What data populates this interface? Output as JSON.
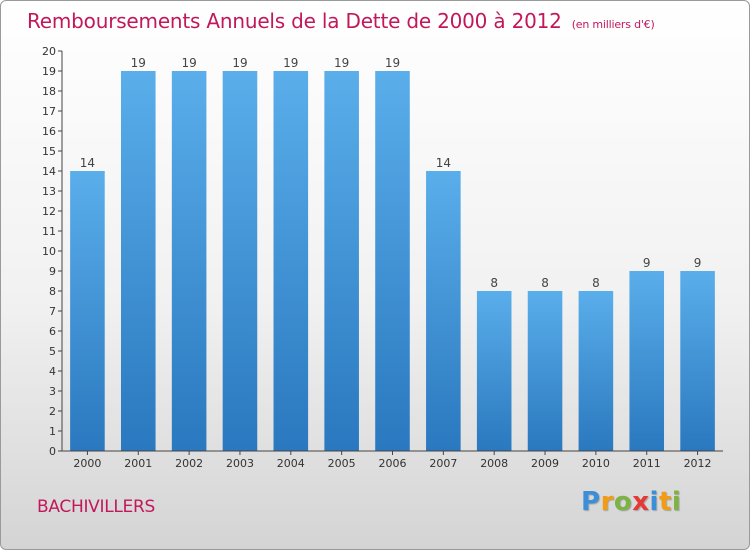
{
  "header": {
    "title": "Remboursements Annuels de la Dette de 2000 à 2012",
    "subtitle": "(en milliers d'€)"
  },
  "footer": {
    "commune": "BACHIVILLERS",
    "logo_letters": [
      {
        "char": "P",
        "color": "#3a8fd8"
      },
      {
        "char": "r",
        "color": "#f39c12"
      },
      {
        "char": "o",
        "color": "#7cb342"
      },
      {
        "char": "x",
        "color": "#e53935"
      },
      {
        "char": "i",
        "color": "#3a8fd8"
      },
      {
        "char": "t",
        "color": "#f39c12"
      },
      {
        "char": "i",
        "color": "#7cb342"
      }
    ]
  },
  "chart_data": {
    "type": "bar",
    "title": "Remboursements Annuels de la Dette de 2000 à 2012",
    "subtitle": "(en milliers d'€)",
    "categories": [
      "2000",
      "2001",
      "2002",
      "2003",
      "2004",
      "2005",
      "2006",
      "2007",
      "2008",
      "2009",
      "2010",
      "2011",
      "2012"
    ],
    "values": [
      14,
      19,
      19,
      19,
      19,
      19,
      19,
      14,
      8,
      8,
      8,
      9,
      9
    ],
    "ylim": [
      0,
      20
    ],
    "yticks": [
      0,
      1,
      2,
      3,
      4,
      5,
      6,
      7,
      8,
      9,
      10,
      11,
      12,
      13,
      14,
      15,
      16,
      17,
      18,
      19,
      20
    ],
    "grid": false,
    "xlabel": "",
    "ylabel": "",
    "bar_color": "#3d8fd6"
  }
}
